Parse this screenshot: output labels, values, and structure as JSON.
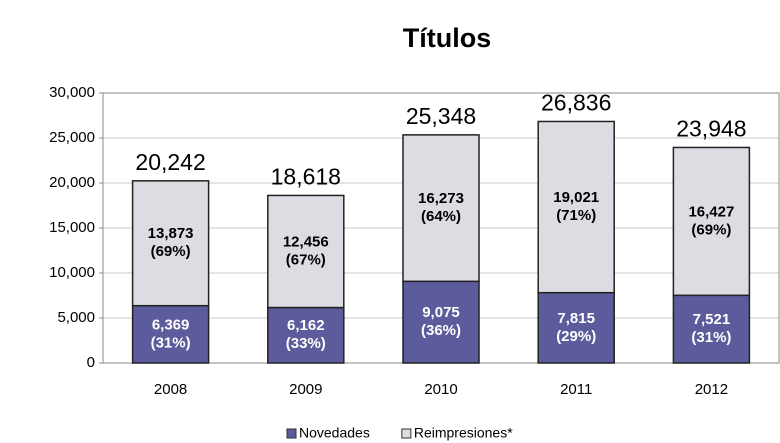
{
  "chart_data": {
    "type": "stacked_bar",
    "title": "Títulos",
    "categories": [
      "2008",
      "2009",
      "2010",
      "2011",
      "2012"
    ],
    "series": [
      {
        "name": "Novedades",
        "color": "#5c5c9c",
        "label_color": "#ffffff",
        "values": [
          6369,
          6162,
          9075,
          7815,
          7521
        ],
        "value_labels": [
          "6,369",
          "6,162",
          "9,075",
          "7,815",
          "7,521"
        ],
        "shares": [
          31,
          33,
          36,
          29,
          31
        ],
        "share_labels": [
          "(31%)",
          "(33%)",
          "(36%)",
          "(29%)",
          "(31%)"
        ]
      },
      {
        "name": "Reimpresiones*",
        "color": "#dcdce2",
        "label_color": "#000000",
        "values": [
          13873,
          12456,
          16273,
          19021,
          16427
        ],
        "value_labels": [
          "13,873",
          "12,456",
          "16,273",
          "19,021",
          "16,427"
        ],
        "shares": [
          69,
          67,
          64,
          71,
          69
        ],
        "share_labels": [
          "(69%)",
          "(67%)",
          "(64%)",
          "(71%)",
          "(69%)"
        ]
      }
    ],
    "totals": [
      20242,
      18618,
      25348,
      26836,
      23948
    ],
    "total_labels": [
      "20,242",
      "18,618",
      "25,348",
      "26,836",
      "23,948"
    ],
    "ylim": [
      0,
      30000
    ],
    "yticks": [
      {
        "value": 0,
        "label": "0"
      },
      {
        "value": 5000,
        "label": "5,000"
      },
      {
        "value": 10000,
        "label": "10,000"
      },
      {
        "value": 15000,
        "label": "15,000"
      },
      {
        "value": 20000,
        "label": "20,000"
      },
      {
        "value": 25000,
        "label": "25,000"
      },
      {
        "value": 30000,
        "label": "30,000"
      }
    ],
    "grid": true,
    "legend": "bottom"
  }
}
